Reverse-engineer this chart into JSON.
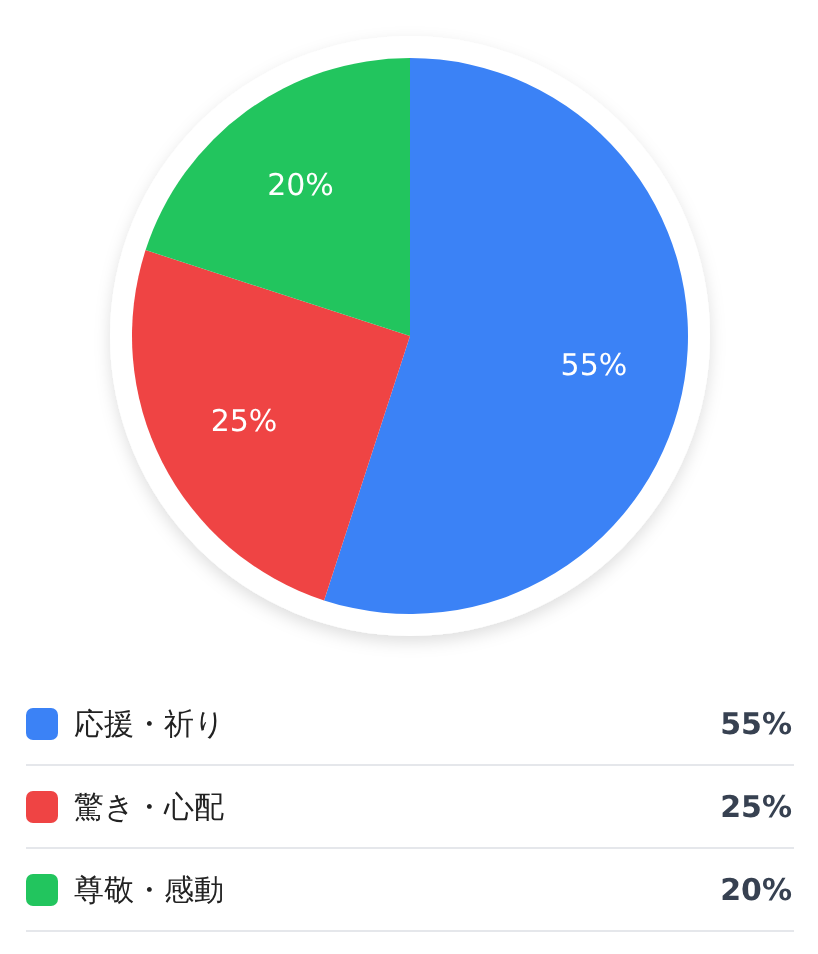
{
  "chart_data": {
    "type": "pie",
    "categories": [
      "応援・祈り",
      "驚き・心配",
      "尊敬・感動"
    ],
    "values": [
      55,
      25,
      20
    ],
    "colors": [
      "#3b82f6",
      "#ef4444",
      "#22c55e"
    ],
    "value_labels": [
      "55%",
      "25%",
      "20%"
    ],
    "legend": "bottom"
  }
}
